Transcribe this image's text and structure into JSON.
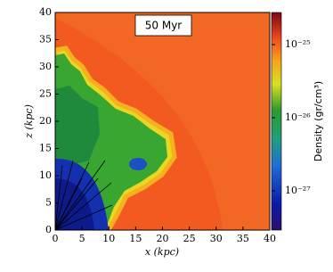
{
  "chart_data": {
    "type": "heatmap",
    "annotation": "50 Myr",
    "xlabel": "x (kpc)",
    "ylabel": "z (kpc)",
    "xlim": [
      0,
      40
    ],
    "ylim": [
      0,
      40
    ],
    "xticks": [
      0,
      5,
      10,
      15,
      20,
      25,
      30,
      35,
      40
    ],
    "yticks": [
      0,
      5,
      10,
      15,
      20,
      25,
      30,
      35,
      40
    ],
    "colorbar": {
      "label": "Density (gr/cm³)",
      "scale": "log",
      "lim": [
        2.9e-28,
        2.75e-25
      ],
      "ticks": [
        {
          "value": 1e-25,
          "label": "10⁻²⁵"
        },
        {
          "value": 1e-26,
          "label": "10⁻²⁶"
        },
        {
          "value": 1e-27,
          "label": "10⁻²⁷"
        }
      ]
    }
  }
}
